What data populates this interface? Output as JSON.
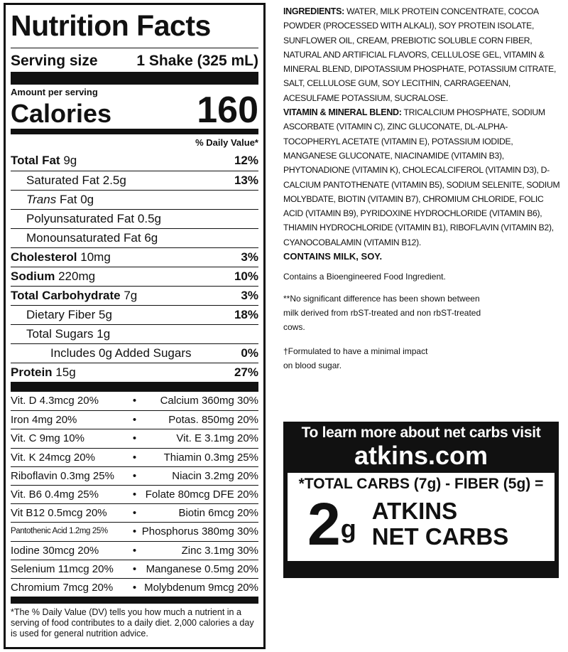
{
  "label": {
    "title": "Nutrition Facts",
    "serving_label": "Serving size",
    "serving_value": "1 Shake (325 mL)",
    "amount_per_serving": "Amount per serving",
    "calories_label": "Calories",
    "calories_value": "160",
    "dv_header": "% Daily Value*",
    "nutrients": [
      {
        "name": "Total Fat",
        "amount": "9g",
        "dv": "12%"
      },
      {
        "name": "Saturated Fat",
        "amount": "2.5g",
        "dv": "13%"
      },
      {
        "name": "Trans",
        "amount": "Fat 0g",
        "dv": ""
      },
      {
        "name": "Polyunsaturated Fat",
        "amount": "0.5g",
        "dv": ""
      },
      {
        "name": "Monounsaturated Fat",
        "amount": "6g",
        "dv": ""
      },
      {
        "name": "Cholesterol",
        "amount": "10mg",
        "dv": "3%"
      },
      {
        "name": "Sodium",
        "amount": "220mg",
        "dv": "10%"
      },
      {
        "name": "Total Carbohydrate",
        "amount": "7g",
        "dv": "3%"
      },
      {
        "name": "Dietary Fiber",
        "amount": "5g",
        "dv": "18%"
      },
      {
        "name": "Total Sugars",
        "amount": "1g",
        "dv": ""
      },
      {
        "name": "Includes 0g Added Sugars",
        "amount": "",
        "dv": "0%"
      },
      {
        "name": "Protein",
        "amount": "15g",
        "dv": "27%"
      }
    ],
    "vitamins": [
      [
        "Vit. D 4.3mcg 20%",
        "Calcium 360mg 30%"
      ],
      [
        "Iron 4mg 20%",
        "Potas. 850mg 20%"
      ],
      [
        "Vit. C 9mg 10%",
        "Vit. E 3.1mg 20%"
      ],
      [
        "Vit. K 24mcg 20%",
        "Thiamin 0.3mg 25%"
      ],
      [
        "Riboflavin 0.3mg 25%",
        "Niacin 3.2mg 20%"
      ],
      [
        "Vit. B6 0.4mg 25%",
        "Folate 80mcg DFE 20%"
      ],
      [
        "Vit B12 0.5mcg 20%",
        "Biotin 6mcg 20%"
      ],
      [
        "Pantothenic Acid 1.2mg 25%",
        "Phosphorus 380mg 30%"
      ],
      [
        "Iodine 30mcg 20%",
        "Zinc 3.1mg 30%"
      ],
      [
        "Selenium 11mcg 20%",
        "Manganese 0.5mg 20%"
      ],
      [
        "Chromium 7mcg 20%",
        "Molybdenum 9mcg 20%"
      ]
    ],
    "bullet": "•",
    "footnote": "*The % Daily Value (DV) tells you how much a nutrient in a serving of food contributes to a daily diet. 2,000 calories a day is used for general nutrition advice."
  },
  "info": {
    "ingredients_label": "INGREDIENTS:",
    "ingredients": "WATER, MILK PROTEIN CONCENTRATE, COCOA POWDER (PROCESSED WITH ALKALI), SOY PROTEIN ISOLATE, SUNFLOWER OIL, CREAM, PREBIOTIC SOLUBLE CORN FIBER, NATURAL AND ARTIFICIAL FLAVORS, CELLULOSE GEL, VITAMIN & MINERAL BLEND, DIPOTASSIUM PHOSPHATE, POTASSIUM CITRATE, SALT, CELLULOSE GUM, SOY LECITHIN, CARRAGEENAN, ACESULFAME POTASSIUM, SUCRALOSE.",
    "blend_label": "VITAMIN & MINERAL BLEND:",
    "blend": "TRICALCIUM PHOSPHATE, SODIUM ASCORBATE (VITAMIN C), ZINC GLUCONATE, DL-ALPHA-TOCOPHERYL ACETATE (VITAMIN E), POTASSIUM IODIDE, MANGANESE GLUCONATE, NIACINAMIDE (VITAMIN B3), PHYTONADIONE (VITAMIN K), CHOLECALCIFEROL (VITAMIN D3), D-CALCIUM PANTOTHENATE (VITAMIN B5), SODIUM SELENITE, SODIUM MOLYBDATE, BIOTIN (VITAMIN B7), CHROMIUM CHLORIDE, FOLIC ACID (VITAMIN B9), PYRIDOXINE HYDROCHLORIDE (VITAMIN B6), THIAMIN HYDROCHLORIDE (VITAMIN B1), RIBOFLAVIN (VITAMIN B2), CYANOCOBALAMIN (VITAMIN B12).",
    "contains": "CONTAINS MILK, SOY.",
    "bioengineered": "Contains a Bioengineered Food Ingredient.",
    "rbst_note": "**No significant difference has been shown between milk derived from rbST-treated and non rbST-treated cows.",
    "sugar_note": "†Formulated to have a minimal impact on blood sugar."
  },
  "net_carbs": {
    "learn": "To learn more about net carbs visit",
    "site": "atkins.com",
    "formula": "*TOTAL CARBS (7g) - FIBER (5g) =",
    "number": "2",
    "unit": "g",
    "line1": "ATKINS",
    "line2": "NET CARBS"
  }
}
